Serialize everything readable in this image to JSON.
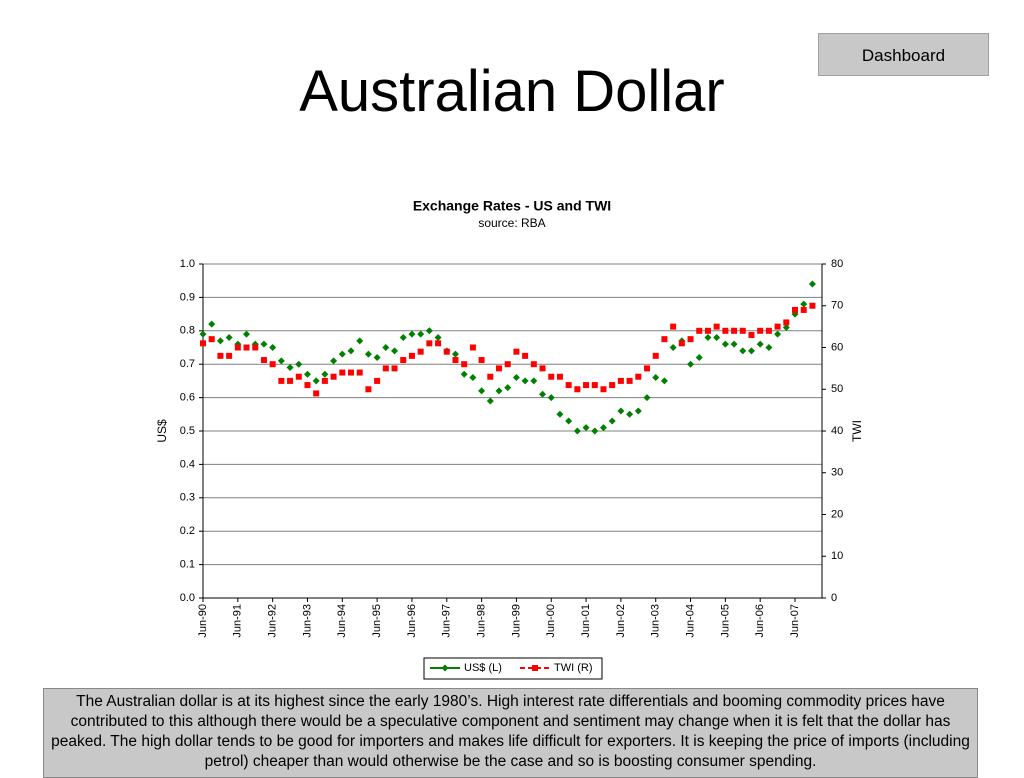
{
  "header": {
    "title": "Australian Dollar",
    "button": "Dashboard"
  },
  "chart_data": {
    "type": "line",
    "title": "Exchange Rates - US and TWI",
    "subtitle": "source: RBA",
    "ylabel": "US$",
    "y2label": "TWI",
    "categories": [
      "Jun-90",
      null,
      null,
      null,
      "Jun-91",
      null,
      null,
      null,
      "Jun-92",
      null,
      null,
      null,
      "Jun-93",
      null,
      null,
      null,
      "Jun-94",
      null,
      null,
      null,
      "Jun-95",
      null,
      null,
      null,
      "Jun-96",
      null,
      null,
      null,
      "Jun-97",
      null,
      null,
      null,
      "Jun-98",
      null,
      null,
      null,
      "Jun-99",
      null,
      null,
      null,
      "Jun-00",
      null,
      null,
      null,
      "Jun-01",
      null,
      null,
      null,
      "Jun-02",
      null,
      null,
      null,
      "Jun-03",
      null,
      null,
      null,
      "Jun-04",
      null,
      null,
      null,
      "Jun-05",
      null,
      null,
      null,
      "Jun-06",
      null,
      null,
      null,
      "Jun-07",
      null,
      null
    ],
    "series": [
      {
        "name": "US$ (L)",
        "color": "#008000",
        "axis": "y",
        "values": [
          0.79,
          0.82,
          0.77,
          0.78,
          0.76,
          0.79,
          0.76,
          0.76,
          0.75,
          0.71,
          0.69,
          0.7,
          0.67,
          0.65,
          0.67,
          0.71,
          0.73,
          0.74,
          0.77,
          0.73,
          0.72,
          0.75,
          0.74,
          0.78,
          0.79,
          0.79,
          0.8,
          0.78,
          0.74,
          0.73,
          0.67,
          0.66,
          0.62,
          0.59,
          0.62,
          0.63,
          0.66,
          0.65,
          0.65,
          0.61,
          0.6,
          0.55,
          0.53,
          0.5,
          0.51,
          0.5,
          0.51,
          0.53,
          0.56,
          0.55,
          0.56,
          0.6,
          0.66,
          0.65,
          0.75,
          0.77,
          0.7,
          0.72,
          0.78,
          0.78,
          0.76,
          0.76,
          0.74,
          0.74,
          0.76,
          0.75,
          0.79,
          0.81,
          0.85,
          0.88,
          0.94
        ]
      },
      {
        "name": "TWI (R)",
        "color": "#ff0000",
        "axis": "y2",
        "values": [
          61,
          62,
          58,
          58,
          60,
          60,
          60,
          57,
          56,
          52,
          52,
          53,
          51,
          49,
          52,
          53,
          54,
          54,
          54,
          50,
          52,
          55,
          55,
          57,
          58,
          59,
          61,
          61,
          59,
          57,
          56,
          60,
          57,
          53,
          55,
          56,
          59,
          58,
          56,
          55,
          53,
          53,
          51,
          50,
          51,
          51,
          50,
          51,
          52,
          52,
          53,
          55,
          58,
          62,
          65,
          61,
          62,
          64,
          64,
          65,
          64,
          64,
          64,
          63,
          64,
          64,
          65,
          66,
          69,
          69,
          70
        ]
      }
    ],
    "ylim": [
      0,
      1
    ],
    "yticks": [
      {
        "value": 0,
        "label": "0.0"
      },
      0.1,
      0.2,
      0.3,
      0.4,
      0.5,
      0.6,
      0.7,
      0.8,
      0.9,
      {
        "value": 1,
        "label": "1.0"
      }
    ],
    "y2lim": [
      0,
      80
    ],
    "y2ticks": [
      0,
      10,
      20,
      30,
      40,
      50,
      60,
      70,
      80
    ],
    "grid": true,
    "legend": "bottom"
  },
  "commentary": "The Australian dollar is at its highest since the early 1980’s.  High interest rate differentials and booming commodity prices have contributed to this although there would be a speculative component and sentiment may change when it is felt that the dollar has peaked.  The high dollar tends to be good for importers and makes life difficult for exporters.  It is keeping the price of imports (including petrol) cheaper than would otherwise be the case and so is boosting consumer spending."
}
